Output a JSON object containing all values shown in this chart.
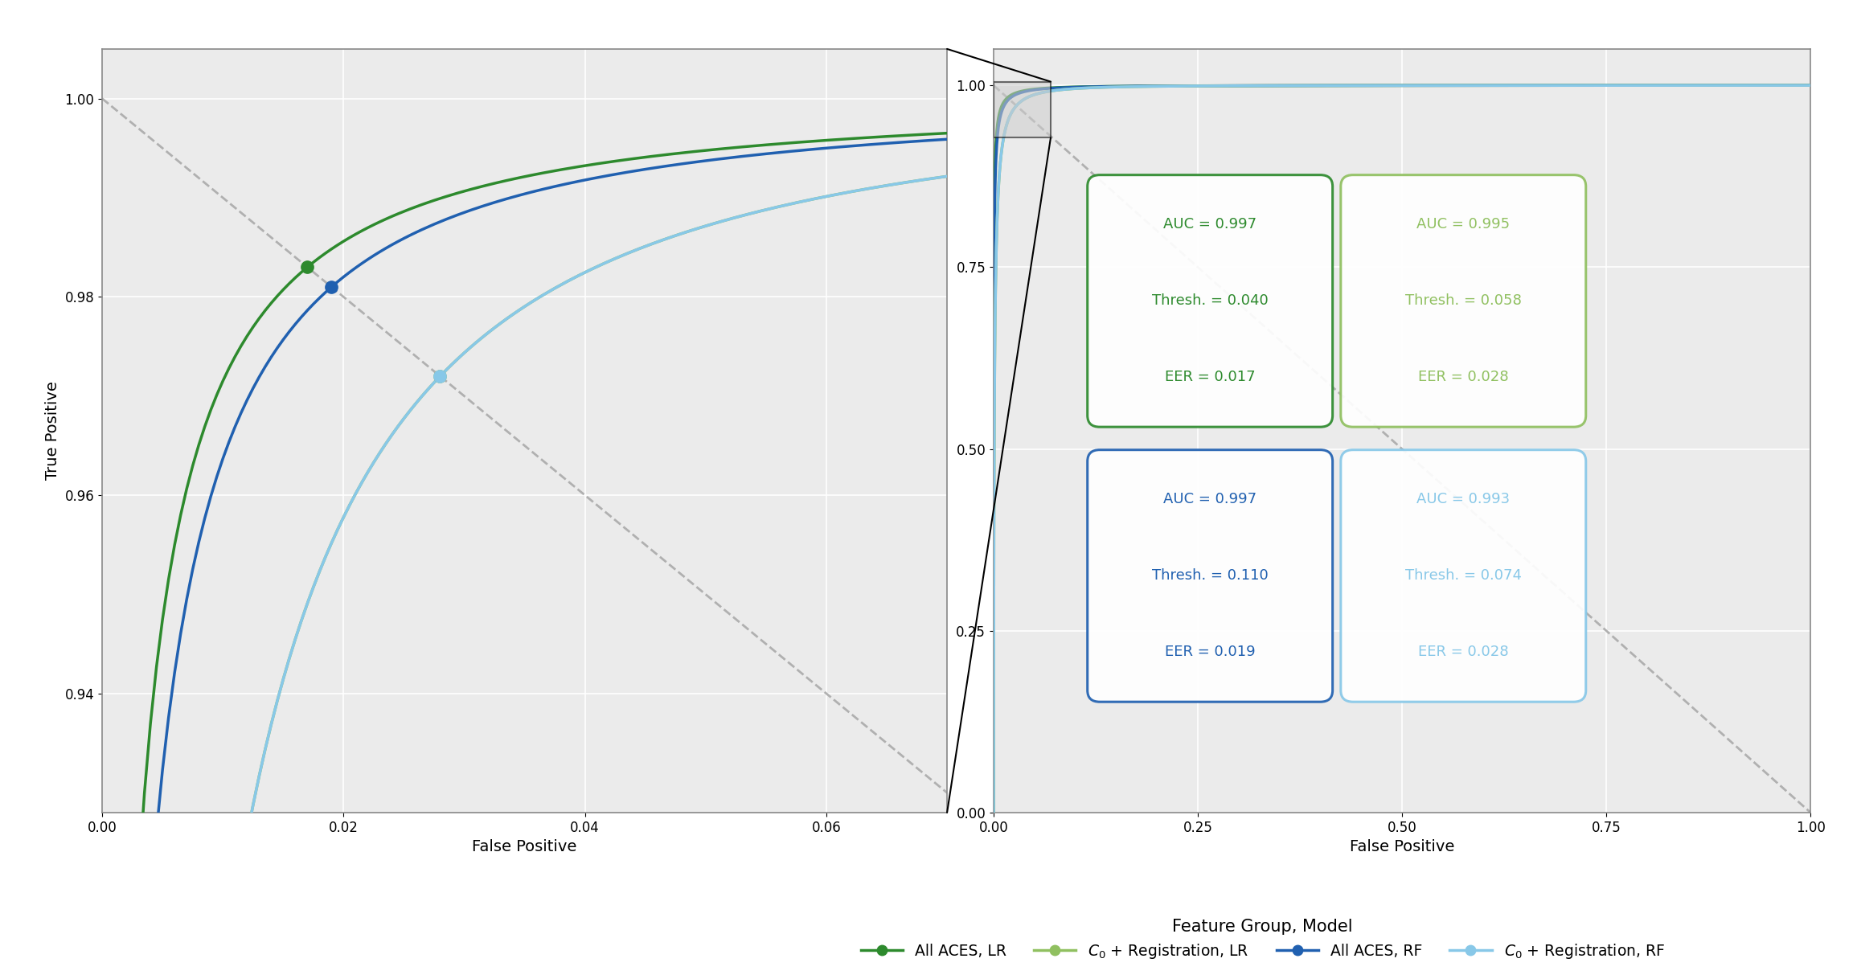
{
  "curves": {
    "lr_all": {
      "color": "#2d8a2d",
      "label": "All ACES, LR",
      "auc": 0.997,
      "thresh": 0.04,
      "eer": 0.017,
      "eer_fpr": 0.017,
      "eer_tpr": 0.983
    },
    "rf_all": {
      "color": "#2060b0",
      "label": "All ACES, RF",
      "auc": 0.997,
      "thresh": 0.11,
      "eer": 0.019,
      "eer_fpr": 0.019,
      "eer_tpr": 0.981
    },
    "lr_sub": {
      "color": "#90c060",
      "label": "C_0 + Registration, LR",
      "auc": 0.995,
      "thresh": 0.058,
      "eer": 0.028,
      "eer_fpr": 0.028,
      "eer_tpr": 0.972
    },
    "rf_sub": {
      "color": "#88c8e8",
      "label": "C_0 + Registration, RF",
      "auc": 0.993,
      "thresh": 0.074,
      "eer": 0.028,
      "eer_fpr": 0.028,
      "eer_tpr": 0.972
    }
  },
  "zoom_xlim": [
    0.0,
    0.07
  ],
  "zoom_ylim": [
    0.928,
    1.005
  ],
  "full_xlim": [
    0.0,
    1.0
  ],
  "full_ylim": [
    0.0,
    1.05
  ],
  "background_color": "#ebebeb",
  "grid_color": "#ffffff",
  "label_fontsize": 14,
  "tick_fontsize": 12,
  "annot_fontsize": 13,
  "lw": 2.5
}
